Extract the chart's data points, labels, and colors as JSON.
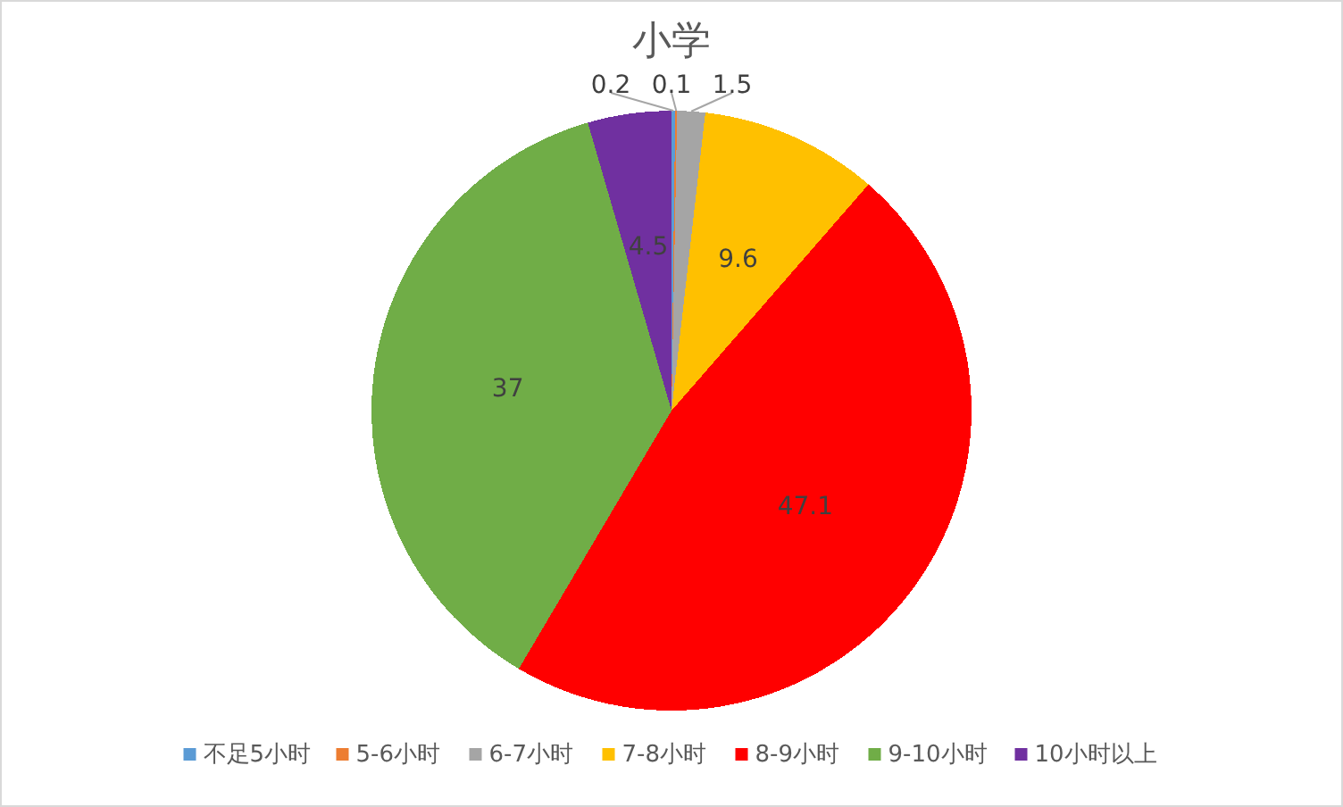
{
  "chart_data": {
    "type": "pie",
    "title": "小学",
    "categories": [
      "不足5小时",
      "5-6小时",
      "6-7小时",
      "7-8小时",
      "8-9小时",
      "9-10小时",
      "10小时以上"
    ],
    "values": [
      0.2,
      0.1,
      1.5,
      9.6,
      47.1,
      37,
      4.5
    ],
    "colors": [
      "#5b9bd5",
      "#ed7d31",
      "#a5a5a5",
      "#ffc000",
      "#ff0000",
      "#70ad47",
      "#7030a0"
    ],
    "data_labels": true,
    "legend": "bottom"
  }
}
